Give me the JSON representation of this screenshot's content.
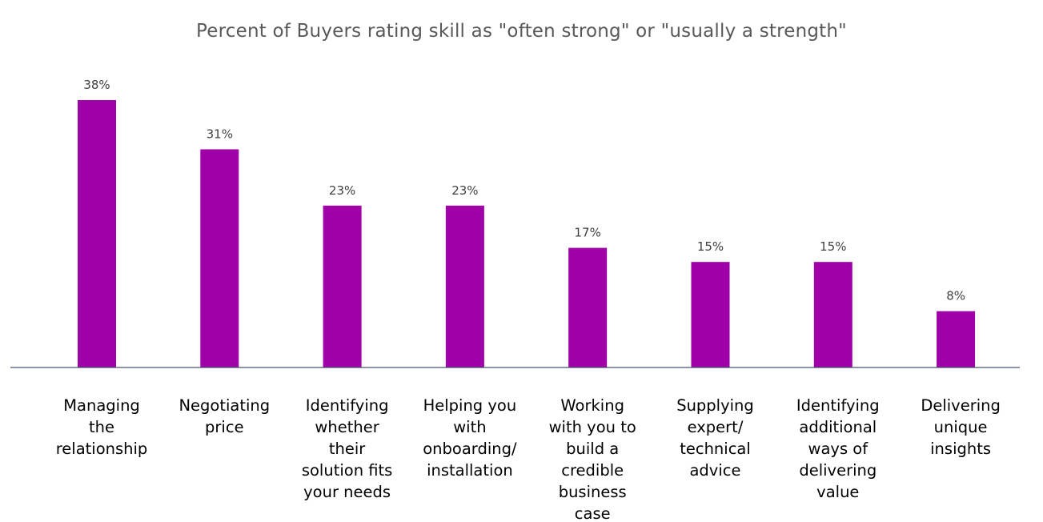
{
  "chart_data": {
    "type": "bar",
    "title": "Percent of Buyers rating skill as \"often strong\" or \"usually a strength\"",
    "categories": [
      [
        "Managing",
        "the",
        "relationship"
      ],
      [
        "Negotiating",
        "price"
      ],
      [
        "Identifying",
        "whether",
        "their",
        "solution fits",
        "your needs"
      ],
      [
        "Helping you",
        "with",
        "onboarding/",
        "installation"
      ],
      [
        "Working",
        "with you to",
        "build a",
        "credible",
        "business",
        "case"
      ],
      [
        "Supplying",
        "expert/",
        "technical",
        "advice"
      ],
      [
        "Identifying",
        "additional",
        "ways of",
        "delivering",
        "value"
      ],
      [
        "Delivering",
        "unique",
        "insights"
      ]
    ],
    "values": [
      38,
      31,
      23,
      23,
      17,
      15,
      15,
      8
    ],
    "value_labels": [
      "38%",
      "31%",
      "23%",
      "23%",
      "17%",
      "15%",
      "15%",
      "8%"
    ],
    "ylim": [
      0,
      38
    ],
    "grid": false,
    "bar_color": "#A000A8",
    "axis_color": "#44546A"
  }
}
